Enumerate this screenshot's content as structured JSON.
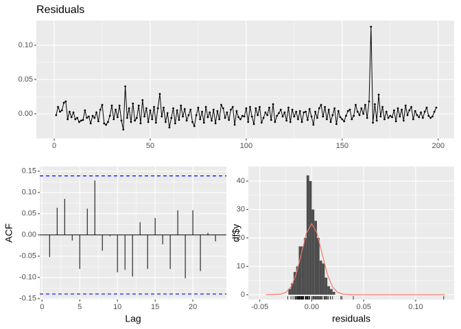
{
  "chart_data": [
    {
      "type": "line",
      "title": "Residuals",
      "color": "#000000",
      "x": [
        1,
        2,
        3,
        4,
        5,
        6,
        7,
        8,
        9,
        10,
        11,
        12,
        13,
        14,
        15,
        16,
        17,
        18,
        19,
        20,
        21,
        22,
        23,
        24,
        25,
        26,
        27,
        28,
        29,
        30,
        31,
        32,
        33,
        34,
        35,
        36,
        37,
        38,
        39,
        40,
        41,
        42,
        43,
        44,
        45,
        46,
        47,
        48,
        49,
        50,
        51,
        52,
        53,
        54,
        55,
        56,
        57,
        58,
        59,
        60,
        61,
        62,
        63,
        64,
        65,
        66,
        67,
        68,
        69,
        70,
        71,
        72,
        73,
        74,
        75,
        76,
        77,
        78,
        79,
        80,
        81,
        82,
        83,
        84,
        85,
        86,
        87,
        88,
        89,
        90,
        91,
        92,
        93,
        94,
        95,
        96,
        97,
        98,
        99,
        100,
        101,
        102,
        103,
        104,
        105,
        106,
        107,
        108,
        109,
        110,
        111,
        112,
        113,
        114,
        115,
        116,
        117,
        118,
        119,
        120,
        121,
        122,
        123,
        124,
        125,
        126,
        127,
        128,
        129,
        130,
        131,
        132,
        133,
        134,
        135,
        136,
        137,
        138,
        139,
        140,
        141,
        142,
        143,
        144,
        145,
        146,
        147,
        148,
        149,
        150,
        151,
        152,
        153,
        154,
        155,
        156,
        157,
        158,
        159,
        160,
        161,
        162,
        163,
        164,
        165,
        166,
        167,
        168,
        169,
        170,
        171,
        172,
        173,
        174,
        175,
        176,
        177,
        178,
        179,
        180,
        181,
        182,
        183,
        184,
        185,
        186,
        187,
        188,
        189,
        190,
        191,
        192,
        193,
        194,
        195,
        196,
        197,
        198,
        199
      ],
      "values": [
        -0.002,
        0.01,
        0.003,
        0.005,
        0.016,
        0.018,
        -0.008,
        0.003,
        -0.005,
        0.002,
        -0.008,
        -0.006,
        -0.012,
        -0.01,
        -0.009,
        0.005,
        -0.006,
        -0.004,
        -0.014,
        -0.003,
        -0.006,
        0.002,
        -0.011,
        0.006,
        0.013,
        -0.014,
        -0.016,
        -0.012,
        -0.003,
        0.012,
        -0.008,
        0.006,
        -0.005,
        0.012,
        -0.01,
        -0.023,
        0.04,
        -0.006,
        0.008,
        -0.012,
        0.015,
        -0.01,
        -0.006,
        0.012,
        -0.014,
        0.02,
        -0.004,
        0.008,
        -0.012,
        0.005,
        -0.008,
        0.01,
        -0.013,
        0.008,
        0.029,
        -0.004,
        0.009,
        -0.012,
        0.001,
        -0.02,
        -0.006,
        0.008,
        -0.014,
        0.005,
        -0.009,
        0.012,
        -0.004,
        0.007,
        -0.01,
        -0.002,
        0.006,
        -0.012,
        -0.018,
        -0.002,
        0.009,
        -0.008,
        0.003,
        -0.013,
        0.01,
        -0.005,
        0.002,
        -0.01,
        0.006,
        -0.014,
        0.004,
        -0.008,
        0.013,
        0.008,
        -0.006,
        0.002,
        -0.009,
        0.006,
        0.01,
        -0.016,
        0.004,
        -0.005,
        -0.008,
        -0.003,
        -0.004,
        0.008,
        -0.012,
        0.01,
        -0.004,
        -0.015,
        0.008,
        -0.002,
        0.01,
        -0.013,
        -0.006,
        0.002,
        -0.002,
        0.009,
        -0.009,
        0.014,
        -0.012,
        -0.003,
        0.001,
        0.006,
        -0.004,
        0.002,
        -0.01,
        0.009,
        -0.012,
        0.006,
        -0.004,
        0.003,
        -0.008,
        0.004,
        -0.012,
        0.002,
        0.003,
        -0.009,
        0.007,
        -0.004,
        -0.016,
        0.003,
        -0.006,
        0.008,
        0.013,
        -0.004,
        0.01,
        -0.008,
        0.006,
        -0.012,
        -0.002,
        0.008,
        -0.015,
        0.004,
        -0.005,
        -0.008,
        -0.011,
        -0.003,
        0.004,
        0.006,
        -0.008,
        -0.003,
        0.013,
        0.003,
        -0.002,
        0.008,
        0.0,
        0.013,
        -0.006,
        0.018,
        0.127,
        -0.013,
        0.014,
        -0.01,
        0.028,
        -0.004,
        0.01,
        -0.008,
        0.003,
        -0.006,
        -0.003,
        -0.005,
        0.005,
        -0.011,
        0.008,
        -0.004,
        0.006,
        -0.01,
        0.012,
        -0.002,
        0.005,
        0.01,
        -0.008,
        0.004,
        -0.002,
        -0.005,
        0.002,
        -0.006,
        0.003,
        0.009,
        -0.003,
        -0.006,
        -0.004,
        0.003,
        0.009
      ],
      "xlim": [
        -9.3,
        208.3
      ],
      "xticks": [
        0,
        50,
        100,
        150,
        200
      ],
      "ylim": [
        -0.036,
        0.136
      ],
      "yticks": [
        {
          "value": 0,
          "label": "0.00"
        },
        0.05,
        {
          "value": 0.1,
          "label": "0.10"
        }
      ],
      "grid": true
    },
    {
      "type": "acf",
      "xlabel": "Lag",
      "ylabel": "ACF",
      "color": "#000000",
      "x": [
        1,
        2,
        3,
        4,
        5,
        6,
        7,
        8,
        9,
        10,
        11,
        12,
        13,
        14,
        15,
        16,
        17,
        18,
        19,
        20,
        21,
        22,
        23
      ],
      "values": [
        -0.052,
        0.064,
        0.085,
        -0.013,
        -0.08,
        0.062,
        0.128,
        -0.037,
        -0.003,
        -0.088,
        -0.082,
        -0.098,
        0.03,
        -0.08,
        0.04,
        -0.022,
        -0.08,
        0.058,
        -0.102,
        0.058,
        -0.085,
        0.005,
        -0.015
      ],
      "confidence_bound": 0.139,
      "bound_color": "#0000ff",
      "xlim": [
        -0.3,
        24.45
      ],
      "xticks": [
        0,
        5,
        10,
        15,
        20
      ],
      "ylim": [
        -0.152,
        0.161
      ],
      "yticks": [
        -0.15,
        {
          "value": -0.1,
          "label": "-0.10"
        },
        -0.05,
        {
          "value": 0,
          "label": "0.00"
        },
        0.05,
        {
          "value": 0.1,
          "label": "0.10"
        },
        0.15
      ],
      "grid": true
    },
    {
      "type": "histogram",
      "xlabel": "residuals",
      "ylabel": "df$y",
      "color": "#4d4d4d",
      "bins": [
        -0.0225,
        -0.02,
        -0.0175,
        -0.015,
        -0.0125,
        -0.01,
        -0.0075,
        -0.005,
        -0.0025,
        0,
        0.0025,
        0.005,
        0.0075,
        0.01,
        0.0125,
        0.015,
        0.0175,
        0.02,
        0.0225
      ],
      "counts": [
        2,
        4,
        8,
        10,
        17,
        17,
        20,
        42,
        40,
        30,
        26,
        20,
        12,
        11,
        6,
        3,
        2,
        1
      ],
      "curve": {
        "color": "#f8766d",
        "x": [
          -0.044,
          -0.03,
          -0.025,
          -0.02,
          -0.015,
          -0.01,
          -0.005,
          0,
          0.005,
          0.01,
          0.015,
          0.02,
          0.025,
          0.03,
          0.04,
          0.128
        ],
        "y": [
          0,
          0.17,
          0.79,
          2.7,
          7.2,
          14.4,
          21.8,
          25,
          21.8,
          14.4,
          7.2,
          2.7,
          0.79,
          0.17,
          0,
          0
        ]
      },
      "rug": true,
      "xlim": [
        -0.061,
        0.137
      ],
      "xticks": [
        -0.05,
        {
          "value": 0,
          "label": "0.00"
        },
        0.05,
        {
          "value": 0.1,
          "label": "0.10"
        }
      ],
      "ylim": [
        -1.7,
        45.1
      ],
      "yticks": [
        0,
        10,
        20,
        30,
        40
      ],
      "grid": true
    }
  ]
}
